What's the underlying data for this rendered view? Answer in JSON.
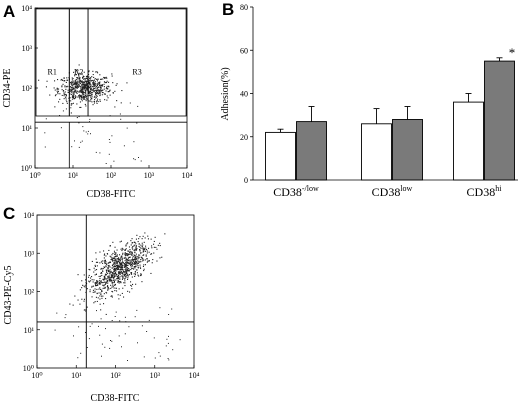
{
  "colors": {
    "white_bar": "#ffffff",
    "gray_bar": "#7a7a7a",
    "dots": "#222222"
  },
  "panels": {
    "a": {
      "letter": "A"
    },
    "b": {
      "letter": "B"
    },
    "c": {
      "letter": "C"
    }
  },
  "chart_data": [
    {
      "panel": "A",
      "type": "scatter",
      "xlabel": "CD38-FITC",
      "ylabel": "CD34-PE",
      "xscale": "log",
      "yscale": "log",
      "xlim": [
        1,
        10000
      ],
      "ylim": [
        1,
        10000
      ],
      "x_ticks": [
        "10⁰",
        "10¹",
        "10²",
        "10³",
        "10⁴"
      ],
      "y_ticks": [
        "10⁰",
        "10¹",
        "10²",
        "10³",
        "10⁴"
      ],
      "gates": [
        {
          "label": "R1",
          "x_range": [
            0.8,
            8
          ],
          "y_range": [
            20,
            9500
          ]
        },
        {
          "label": "R2",
          "x_range": [
            8,
            25
          ],
          "y_range": [
            20,
            9500
          ]
        },
        {
          "label": "R3",
          "x_range": [
            25,
            9500
          ],
          "y_range": [
            20,
            9500
          ]
        }
      ],
      "cluster": {
        "x_center": 20,
        "y_center": 100,
        "x_spread_decades": 0.35,
        "y_spread_decades": 0.18
      },
      "grid": false
    },
    {
      "panel": "B",
      "type": "bar",
      "ylabel": "Adhesion(%)",
      "ylim": [
        0,
        80
      ],
      "y_ticks": [
        0,
        20,
        40,
        60,
        80
      ],
      "categories": [
        {
          "base": "CD38",
          "sup": "-/low"
        },
        {
          "base": "CD38",
          "sup": "low"
        },
        {
          "base": "CD38",
          "sup": "hi"
        }
      ],
      "series": [
        {
          "values": [
            22,
            26,
            36
          ],
          "errors": [
            1.5,
            7,
            4
          ]
        },
        {
          "values": [
            27,
            28,
            55
          ],
          "errors": [
            7,
            6,
            1.5
          ]
        }
      ],
      "annotations": [
        {
          "text": "*",
          "category_index": 2,
          "series_index": 1
        }
      ],
      "grid": false
    },
    {
      "panel": "C",
      "type": "scatter",
      "xlabel": "CD38-FITC",
      "ylabel": "CD43-PE-Cy5",
      "xscale": "log",
      "yscale": "log",
      "xlim": [
        1,
        10000
      ],
      "ylim": [
        1,
        10000
      ],
      "x_ticks": [
        "10⁰",
        "10¹",
        "10²",
        "10³",
        "10⁴"
      ],
      "y_ticks": [
        "10⁰",
        "10¹",
        "10²",
        "10³",
        "10⁴"
      ],
      "quadrant_lines": {
        "x": 18,
        "y": 16
      },
      "cluster": {
        "x_center": 120,
        "y_center": 400,
        "x_spread_decades": 0.4,
        "y_spread_decades": 0.35,
        "correlation": 0.65
      },
      "grid": false
    }
  ]
}
